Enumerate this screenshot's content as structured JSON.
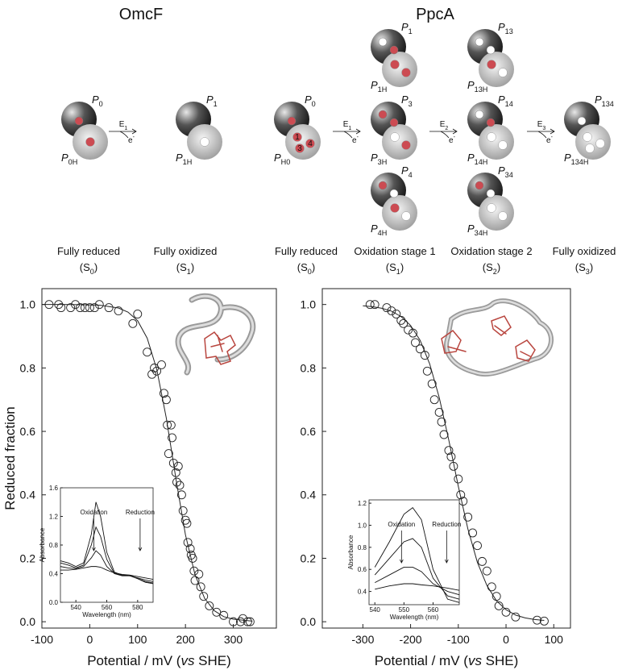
{
  "omcf": {
    "title": "OmcF",
    "stages": [
      [
        {
          "p": {
            "base": "P",
            "sub": "0"
          },
          "ph": {
            "base": "P",
            "sub": "0H"
          },
          "dark": [
            "#cc4b52"
          ],
          "light": [
            "#cc4b52"
          ]
        }
      ],
      [
        {
          "p": {
            "base": "P",
            "sub": "1"
          },
          "ph": {
            "base": "P",
            "sub": "1H"
          },
          "dark": [],
          "light": [
            "#ffffff"
          ]
        }
      ]
    ],
    "arrows": [
      {
        "e": {
          "base": "E",
          "sub": "1"
        },
        "el": {
          "base": "e",
          "sup": "-"
        }
      }
    ],
    "stage_labels": [
      {
        "line1": "Fully reduced",
        "pre": "(S",
        "sub": "0",
        "post": ")"
      },
      {
        "line1": "Fully oxidized",
        "pre": "(S",
        "sub": "1",
        "post": ")"
      }
    ]
  },
  "ppca": {
    "title": "PpcA",
    "stages": [
      [
        {
          "p": {
            "base": "P",
            "sub": "0"
          },
          "ph": {
            "base": "P",
            "sub": "H0"
          },
          "dark": [
            "#cc4b52"
          ],
          "light": [
            "#cc4b52",
            "#cc4b52",
            "#cc4b52"
          ],
          "light_labels": [
            "1",
            "3",
            "4"
          ]
        }
      ],
      [
        {
          "p": {
            "base": "P",
            "sub": "1"
          },
          "ph": {
            "base": "P",
            "sub": "1H"
          },
          "dark": [
            "#ffffff",
            "#cc4b52"
          ],
          "light": [
            "#cc4b52",
            "#cc4b52"
          ]
        },
        {
          "p": {
            "base": "P",
            "sub": "3"
          },
          "ph": {
            "base": "P",
            "sub": "3H"
          },
          "dark": [
            "#cc4b52",
            "#cc4b52"
          ],
          "light": [
            "#ffffff",
            "#cc4b52"
          ]
        },
        {
          "p": {
            "base": "P",
            "sub": "4"
          },
          "ph": {
            "base": "P",
            "sub": "4H"
          },
          "dark": [
            "#cc4b52",
            "#ffffff"
          ],
          "light": [
            "#cc4b52",
            "#ffffff"
          ]
        }
      ],
      [
        {
          "p": {
            "base": "P",
            "sub": "13"
          },
          "ph": {
            "base": "P",
            "sub": "13H"
          },
          "dark": [
            "#ffffff",
            "#ffffff"
          ],
          "light": [
            "#cc4b52",
            "#ffffff"
          ]
        },
        {
          "p": {
            "base": "P",
            "sub": "14"
          },
          "ph": {
            "base": "P",
            "sub": "14H"
          },
          "dark": [
            "#ffffff",
            "#cc4b52"
          ],
          "light": [
            "#ffffff",
            "#ffffff"
          ]
        },
        {
          "p": {
            "base": "P",
            "sub": "34"
          },
          "ph": {
            "base": "P",
            "sub": "34H"
          },
          "dark": [
            "#cc4b52",
            "#ffffff"
          ],
          "light": [
            "#ffffff",
            "#ffffff"
          ]
        }
      ],
      [
        {
          "p": {
            "base": "P",
            "sub": "134"
          },
          "ph": {
            "base": "P",
            "sub": "134H"
          },
          "dark": [
            "#ffffff"
          ],
          "light": [
            "#ffffff",
            "#ffffff",
            "#ffffff"
          ]
        }
      ]
    ],
    "arrows": [
      {
        "e": {
          "base": "E",
          "sub": "1"
        },
        "el": {
          "base": "e",
          "sup": "-"
        }
      },
      {
        "e": {
          "base": "E",
          "sub": "2"
        },
        "el": {
          "base": "e",
          "sup": "-"
        }
      },
      {
        "e": {
          "base": "E",
          "sub": "3"
        },
        "el": {
          "base": "e",
          "sup": "-"
        }
      }
    ],
    "stage_labels": [
      {
        "line1": "Fully reduced",
        "pre": "(S",
        "sub": "0",
        "post": ")"
      },
      {
        "line1": "Oxidation stage 1",
        "pre": "(S",
        "sub": "1",
        "post": ")"
      },
      {
        "line1": "Oxidation stage 2",
        "pre": "(S",
        "sub": "2",
        "post": ")"
      },
      {
        "line1": "Fully oxidized",
        "pre": "(S",
        "sub": "3",
        "post": ")"
      }
    ]
  },
  "chart_data": [
    {
      "type": "scatter",
      "ylabel": "Reduced fraction",
      "xlabel": {
        "pre": "Potential / mV (",
        "italic": "vs",
        "post": " SHE)"
      },
      "xlim": [
        -100,
        390
      ],
      "ylim": [
        -0.02,
        1.05
      ],
      "xticks": [
        -100,
        0,
        100,
        200,
        300
      ],
      "yticks": [
        {
          "value": 0,
          "label": "0.0"
        },
        0.2,
        0.4,
        0.6,
        0.8,
        {
          "value": 1,
          "label": "1.0"
        }
      ],
      "series": [
        {
          "style": "markers",
          "x": [
            -85,
            -65,
            -60,
            -40,
            -30,
            -20,
            -10,
            0,
            10,
            20,
            40,
            60,
            90,
            100,
            120,
            130,
            135,
            140,
            150,
            155,
            160,
            162,
            165,
            170,
            172,
            175,
            180,
            182,
            185,
            188,
            192,
            195,
            200,
            203,
            205,
            210,
            212,
            215,
            218,
            220,
            228,
            232,
            238,
            250,
            265,
            280,
            300,
            315,
            320,
            330,
            335
          ],
          "values": [
            1.0,
            1.0,
            0.99,
            0.99,
            1.0,
            0.99,
            0.99,
            0.99,
            0.99,
            1.0,
            0.99,
            0.98,
            0.94,
            0.97,
            0.85,
            0.78,
            0.8,
            0.79,
            0.81,
            0.72,
            0.7,
            0.62,
            0.53,
            0.62,
            0.58,
            0.5,
            0.47,
            0.44,
            0.49,
            0.43,
            0.4,
            0.35,
            0.32,
            0.31,
            0.25,
            0.23,
            0.21,
            0.2,
            0.16,
            0.13,
            0.15,
            0.11,
            0.08,
            0.05,
            0.03,
            0.02,
            0.0,
            0.0,
            0.01,
            0.0,
            0.0
          ]
        },
        {
          "style": "line",
          "x": [
            -100,
            -60,
            -20,
            20,
            60,
            80,
            100,
            120,
            140,
            160,
            175,
            180,
            200,
            220,
            240,
            260,
            280,
            300,
            340
          ],
          "values": [
            1.0,
            1.0,
            0.9995,
            0.998,
            0.989,
            0.976,
            0.949,
            0.894,
            0.796,
            0.642,
            0.5,
            0.451,
            0.274,
            0.148,
            0.074,
            0.035,
            0.016,
            0.008,
            0.002
          ]
        }
      ],
      "inset": {
        "type": "line",
        "xlabel": "Wavelength (nm)",
        "ylabel": "Absorbance",
        "annotations": [
          "Oxidation",
          "Reduction"
        ],
        "xlim": [
          530,
          590
        ],
        "ylim": [
          0,
          1.6
        ],
        "xticks": [
          540,
          560,
          580
        ],
        "yticks": [
          {
            "value": 0,
            "label": "0.0"
          },
          0.4,
          0.8,
          1.2,
          1.6
        ],
        "x": [
          530,
          535,
          540,
          545,
          550,
          553,
          556,
          560,
          565,
          570,
          575,
          580,
          585,
          590
        ],
        "series": [
          {
            "values": [
              0.58,
              0.55,
              0.5,
              0.55,
              0.95,
              1.4,
              1.2,
              0.7,
              0.42,
              0.38,
              0.38,
              0.33,
              0.28,
              0.26
            ]
          },
          {
            "values": [
              0.55,
              0.52,
              0.48,
              0.52,
              0.8,
              1.05,
              0.92,
              0.6,
              0.4,
              0.37,
              0.37,
              0.33,
              0.29,
              0.27
            ]
          },
          {
            "values": [
              0.5,
              0.48,
              0.47,
              0.5,
              0.62,
              0.72,
              0.66,
              0.5,
              0.4,
              0.38,
              0.37,
              0.34,
              0.31,
              0.29
            ]
          },
          {
            "values": [
              0.45,
              0.45,
              0.46,
              0.48,
              0.5,
              0.5,
              0.49,
              0.45,
              0.41,
              0.39,
              0.38,
              0.36,
              0.34,
              0.32
            ]
          }
        ]
      }
    },
    {
      "type": "scatter",
      "xlabel": {
        "pre": "Potential / mV (",
        "italic": "vs",
        "post": " SHE)"
      },
      "xlim": [
        -385,
        135
      ],
      "ylim": [
        -0.02,
        1.05
      ],
      "xticks": [
        -300,
        -200,
        -100,
        0,
        100
      ],
      "yticks": [
        {
          "value": 0,
          "label": "0.0"
        },
        0.2,
        0.4,
        0.6,
        0.8,
        {
          "value": 1,
          "label": "1.0"
        }
      ],
      "series": [
        {
          "style": "markers",
          "x": [
            -285,
            -275,
            -250,
            -240,
            -230,
            -220,
            -215,
            -205,
            -195,
            -190,
            -180,
            -170,
            -165,
            -155,
            -150,
            -140,
            -135,
            -130,
            -120,
            -115,
            -110,
            -100,
            -95,
            -90,
            -80,
            -70,
            -60,
            -50,
            -40,
            -30,
            -20,
            -15,
            0,
            20,
            65,
            80
          ],
          "values": [
            1.0,
            1.0,
            0.99,
            0.98,
            0.97,
            0.95,
            0.94,
            0.92,
            0.91,
            0.88,
            0.86,
            0.84,
            0.79,
            0.75,
            0.7,
            0.66,
            0.63,
            0.59,
            0.54,
            0.52,
            0.49,
            0.45,
            0.4,
            0.38,
            0.33,
            0.28,
            0.24,
            0.19,
            0.16,
            0.11,
            0.08,
            0.05,
            0.03,
            0.015,
            0.005,
            0.002
          ]
        },
        {
          "style": "line",
          "x": [
            -300,
            -280,
            -260,
            -240,
            -220,
            -200,
            -180,
            -160,
            -140,
            -120,
            -100,
            -80,
            -60,
            -40,
            -20,
            0,
            20,
            40,
            60,
            80
          ],
          "values": [
            0.996,
            0.993,
            0.988,
            0.979,
            0.962,
            0.934,
            0.887,
            0.813,
            0.707,
            0.573,
            0.427,
            0.293,
            0.187,
            0.114,
            0.066,
            0.038,
            0.021,
            0.012,
            0.007,
            0.004
          ]
        }
      ],
      "inset": {
        "type": "line",
        "xlabel": "Wavelength (nm)",
        "ylabel": "Absorbance",
        "annotations": [
          "Oxidation",
          "Reduction"
        ],
        "xlim": [
          538,
          569
        ],
        "ylim": [
          0.28,
          1.23
        ],
        "xticks": [
          540,
          550,
          560
        ],
        "yticks": [
          0.4,
          0.6,
          0.8,
          {
            "value": 1,
            "label": "1.0"
          },
          1.2
        ],
        "x": [
          540,
          545,
          550,
          553,
          556,
          560,
          565,
          569
        ],
        "series": [
          {
            "values": [
              0.62,
              0.85,
              1.1,
              1.16,
              1.05,
              0.6,
              0.33,
              0.3
            ]
          },
          {
            "values": [
              0.55,
              0.7,
              0.85,
              0.88,
              0.8,
              0.52,
              0.36,
              0.33
            ]
          },
          {
            "values": [
              0.48,
              0.55,
              0.62,
              0.62,
              0.58,
              0.47,
              0.4,
              0.37
            ]
          },
          {
            "values": [
              0.42,
              0.45,
              0.47,
              0.47,
              0.46,
              0.45,
              0.43,
              0.41
            ]
          }
        ]
      }
    }
  ]
}
